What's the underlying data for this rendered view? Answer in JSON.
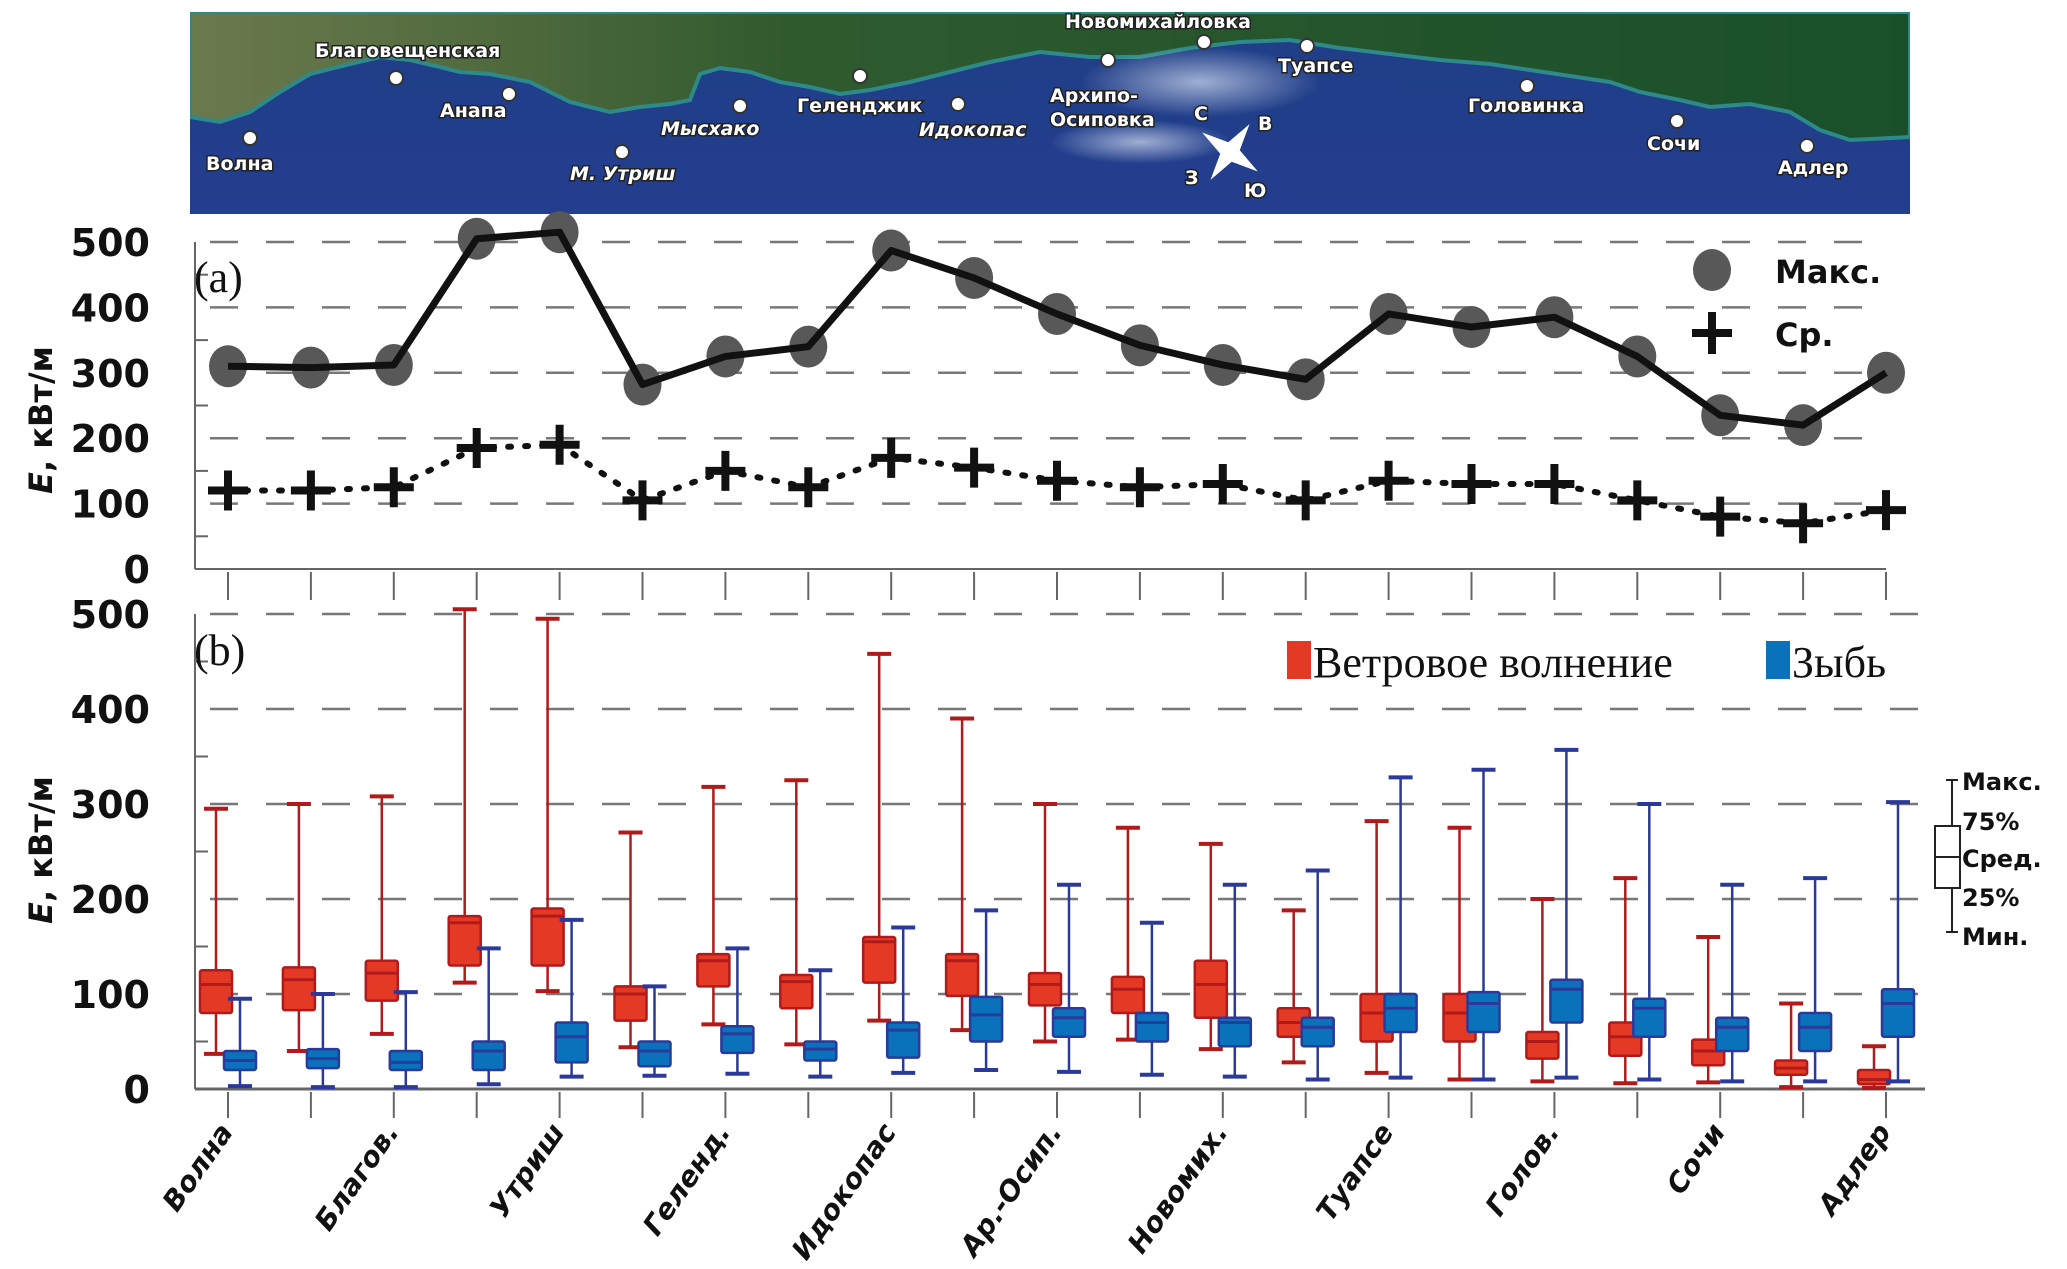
{
  "map": {
    "labels": [
      {
        "name": "Волна",
        "italic": false
      },
      {
        "name": "Благовещенская",
        "italic": false
      },
      {
        "name": "Анапа",
        "italic": false
      },
      {
        "name": "М. Утриш",
        "italic": true
      },
      {
        "name": "Мысхако",
        "italic": true
      },
      {
        "name": "Геленджик",
        "italic": false
      },
      {
        "name": "Идокопас",
        "italic": true
      },
      {
        "name": "Архипо-",
        "italic": false
      },
      {
        "name": "Осиповка",
        "italic": false
      },
      {
        "name": "Новомихайловка",
        "italic": false
      },
      {
        "name": "Туапсе",
        "italic": false
      },
      {
        "name": "Головинка",
        "italic": false
      },
      {
        "name": "Сочи",
        "italic": false
      },
      {
        "name": "Адлер",
        "italic": false
      }
    ],
    "compass": {
      "n": "С",
      "e": "В",
      "s": "Ю",
      "w": "З"
    }
  },
  "chart_data": [
    {
      "type": "line",
      "panel_label": "(a)",
      "ylabel": "E, кВт/м",
      "ylabel_italic": "E",
      "ylabel_rest": ", кВт/м",
      "ylim": [
        0,
        500
      ],
      "yticks": [
        0,
        100,
        200,
        300,
        400,
        500
      ],
      "grid": "dashed horizontal",
      "legend_position": "top-right",
      "x_count": 21,
      "series": [
        {
          "name": "Макс.",
          "marker": "circle",
          "line": "solid",
          "values": [
            310,
            308,
            312,
            505,
            515,
            282,
            325,
            340,
            487,
            445,
            390,
            342,
            312,
            290,
            390,
            370,
            385,
            325,
            235,
            220,
            300
          ]
        },
        {
          "name": "Ср.",
          "marker": "plus",
          "line": "dotted",
          "values": [
            120,
            120,
            125,
            185,
            190,
            105,
            150,
            125,
            170,
            155,
            135,
            125,
            130,
            105,
            135,
            130,
            130,
            105,
            80,
            70,
            90
          ]
        }
      ]
    },
    {
      "type": "box",
      "panel_label": "(b)",
      "ylabel": "E, кВт/м",
      "ylabel_italic": "E",
      "ylabel_rest": ", кВт/м",
      "ylim": [
        0,
        500
      ],
      "yticks": [
        0,
        100,
        200,
        300,
        400,
        500
      ],
      "grid": "dashed horizontal",
      "legend_position": "top-right",
      "categories": [
        "Волна",
        "Благов.",
        "Утриш",
        "Геленд.",
        "Идокопас",
        "Ар.-Осип.",
        "Новомих.",
        "Туапсе",
        "Голов.",
        "Сочи",
        "Адлер"
      ],
      "x_count": 21,
      "series": [
        {
          "name": "Ветровое волнение",
          "color": "#e43a25",
          "edge": "#b01a1a",
          "boxes": [
            [
              37,
              80,
              110,
              125,
              295
            ],
            [
              40,
              83,
              115,
              128,
              300
            ],
            [
              58,
              93,
              122,
              135,
              308
            ],
            [
              112,
              130,
              175,
              182,
              505
            ],
            [
              103,
              130,
              182,
              190,
              495
            ],
            [
              44,
              72,
              100,
              108,
              270
            ],
            [
              68,
              108,
              135,
              142,
              318
            ],
            [
              47,
              85,
              113,
              120,
              325
            ],
            [
              72,
              112,
              155,
              160,
              458
            ],
            [
              62,
              98,
              135,
              142,
              390
            ],
            [
              50,
              88,
              110,
              122,
              300
            ],
            [
              52,
              80,
              105,
              118,
              275
            ],
            [
              42,
              75,
              110,
              135,
              258
            ],
            [
              28,
              55,
              70,
              85,
              188
            ],
            [
              17,
              50,
              80,
              100,
              282
            ],
            [
              10,
              50,
              80,
              100,
              275
            ],
            [
              8,
              32,
              50,
              60,
              200
            ],
            [
              6,
              35,
              55,
              70,
              222
            ],
            [
              7,
              25,
              40,
              52,
              160
            ],
            [
              2,
              15,
              22,
              30,
              90
            ],
            [
              1,
              5,
              10,
              20,
              45
            ]
          ]
        },
        {
          "name": "Зыбь",
          "color": "#0a72ba",
          "edge": "#2b3a9a",
          "boxes": [
            [
              3,
              20,
              30,
              40,
              95
            ],
            [
              2,
              22,
              32,
              42,
              100
            ],
            [
              2,
              20,
              28,
              40,
              102
            ],
            [
              5,
              20,
              40,
              50,
              148
            ],
            [
              13,
              28,
              55,
              70,
              178
            ],
            [
              14,
              24,
              40,
              50,
              108
            ],
            [
              16,
              38,
              58,
              66,
              148
            ],
            [
              13,
              30,
              42,
              50,
              125
            ],
            [
              17,
              33,
              62,
              70,
              170
            ],
            [
              20,
              50,
              78,
              97,
              188
            ],
            [
              18,
              55,
              75,
              85,
              215
            ],
            [
              15,
              50,
              70,
              80,
              175
            ],
            [
              13,
              45,
              70,
              75,
              215
            ],
            [
              10,
              45,
              65,
              75,
              230
            ],
            [
              12,
              60,
              85,
              100,
              328
            ],
            [
              10,
              60,
              90,
              102,
              336
            ],
            [
              12,
              70,
              105,
              115,
              357
            ],
            [
              10,
              55,
              85,
              95,
              300
            ],
            [
              8,
              40,
              65,
              75,
              215
            ],
            [
              8,
              40,
              65,
              80,
              222
            ],
            [
              8,
              55,
              90,
              105,
              302
            ]
          ]
        }
      ],
      "box_legend": [
        "Макс.",
        "75%",
        "Сред.",
        "25%",
        "Мин."
      ]
    }
  ],
  "legend_a": {
    "max": "Макс.",
    "mean": "Ср."
  },
  "legend_b": {
    "wind": "Ветровое волнение",
    "swell": "Зыбь"
  }
}
